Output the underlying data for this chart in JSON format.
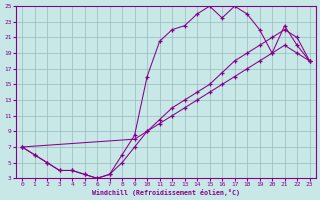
{
  "xlabel": "Windchill (Refroidissement éolien,°C)",
  "bg_color": "#c8e8e8",
  "line_color": "#880088",
  "xlim": [
    -0.5,
    23.5
  ],
  "ylim": [
    3,
    25
  ],
  "xticks": [
    0,
    1,
    2,
    3,
    4,
    5,
    6,
    7,
    8,
    9,
    10,
    11,
    12,
    13,
    14,
    15,
    16,
    17,
    18,
    19,
    20,
    21,
    22,
    23
  ],
  "yticks": [
    3,
    5,
    7,
    9,
    11,
    13,
    15,
    17,
    19,
    21,
    23,
    25
  ],
  "upper_x": [
    0,
    1,
    2,
    3,
    4,
    5,
    6,
    7,
    8,
    9,
    10,
    11,
    12,
    13,
    14,
    15,
    16,
    17,
    18,
    19,
    20,
    21,
    22,
    23
  ],
  "upper_y": [
    7,
    6,
    5,
    4,
    4,
    3.5,
    3,
    3.5,
    6,
    8.5,
    16,
    20.5,
    22,
    22.5,
    24,
    25,
    23.5,
    25,
    24,
    22,
    19,
    22.5,
    20,
    18
  ],
  "mid_x": [
    0,
    1,
    2,
    3,
    4,
    5,
    6,
    7,
    8,
    9,
    10,
    11,
    12,
    13,
    14,
    15,
    16,
    17,
    18,
    19,
    20,
    21,
    22,
    23
  ],
  "mid_y": [
    7,
    6,
    5,
    4,
    4,
    3.5,
    3,
    3.5,
    5,
    7,
    9,
    10.5,
    12,
    13,
    14,
    15,
    16.5,
    18,
    19,
    20,
    21,
    22,
    21,
    18
  ],
  "lower_x": [
    0,
    9,
    10,
    11,
    12,
    13,
    14,
    15,
    16,
    17,
    18,
    19,
    20,
    21,
    22,
    23
  ],
  "lower_y": [
    7,
    8,
    9,
    10,
    11,
    12,
    13,
    14,
    15,
    16,
    17,
    18,
    19,
    20,
    19,
    18
  ]
}
